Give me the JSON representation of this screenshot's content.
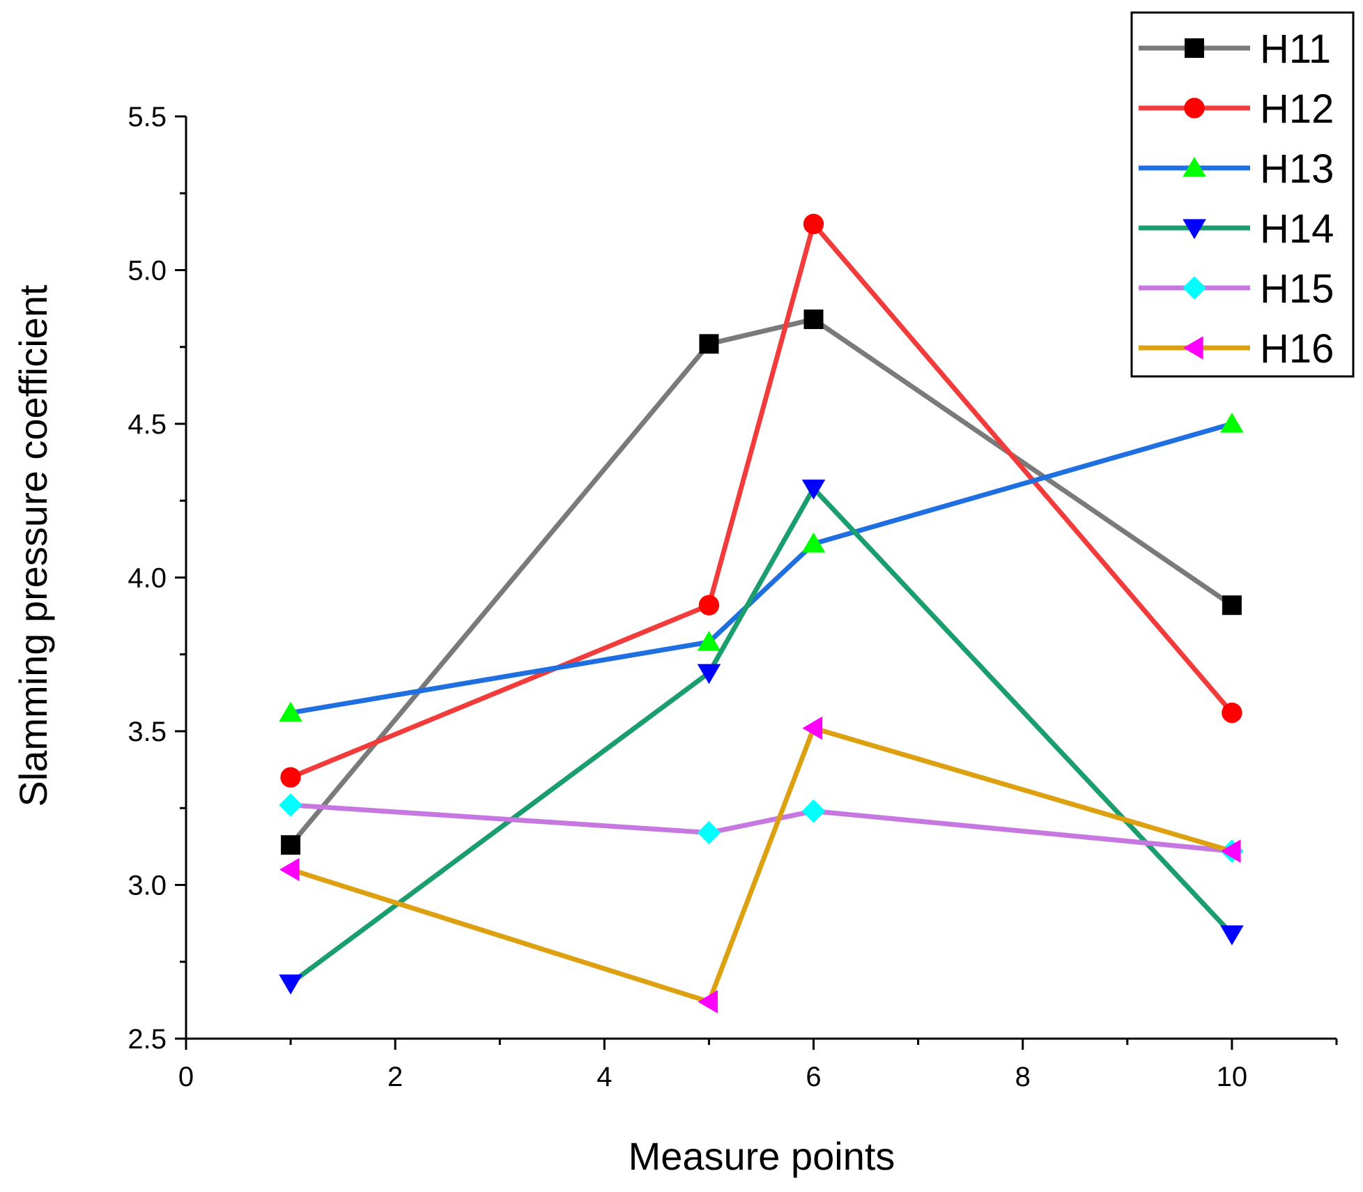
{
  "chart_data": {
    "type": "line",
    "xlabel": "Measure points",
    "ylabel": "Slamming pressure coefficient",
    "xlim": [
      0,
      11
    ],
    "ylim": [
      2.5,
      5.5
    ],
    "x_ticks": [
      0,
      2,
      4,
      6,
      8,
      10
    ],
    "x_tick_labels": [
      "0",
      "2",
      "4",
      "6",
      "8",
      "10"
    ],
    "y_ticks": [
      2.5,
      3.0,
      3.5,
      4.0,
      4.5,
      5.0,
      5.5
    ],
    "y_tick_labels": [
      "2.5",
      "3.0",
      "3.5",
      "4.0",
      "4.5",
      "5.0",
      "5.5"
    ],
    "grid": false,
    "legend_position": "top-right",
    "series": [
      {
        "name": "H11",
        "color": "#7a7a7a",
        "marker": "square",
        "marker_color": "#000000",
        "x": [
          1,
          5,
          6,
          10
        ],
        "values": [
          3.13,
          4.76,
          4.84,
          3.91
        ]
      },
      {
        "name": "H12",
        "color": "#f23c3c",
        "marker": "circle",
        "marker_color": "#ff0000",
        "x": [
          1,
          5,
          6,
          10
        ],
        "values": [
          3.35,
          3.91,
          5.15,
          3.56
        ]
      },
      {
        "name": "H13",
        "color": "#1f6fe0",
        "marker": "triangle-up",
        "marker_color": "#00ff00",
        "x": [
          1,
          5,
          6,
          10
        ],
        "values": [
          3.56,
          3.79,
          4.11,
          4.5
        ]
      },
      {
        "name": "H14",
        "color": "#1a9e6e",
        "marker": "triangle-down",
        "marker_color": "#0000ff",
        "x": [
          1,
          5,
          6,
          10
        ],
        "values": [
          2.68,
          3.69,
          4.29,
          2.84
        ]
      },
      {
        "name": "H15",
        "color": "#c678e0",
        "marker": "diamond",
        "marker_color": "#00ffff",
        "x": [
          1,
          5,
          6,
          10
        ],
        "values": [
          3.26,
          3.17,
          3.24,
          3.11
        ]
      },
      {
        "name": "H16",
        "color": "#dca010",
        "marker": "triangle-left",
        "marker_color": "#ff00ff",
        "x": [
          1,
          5,
          6,
          10
        ],
        "values": [
          3.05,
          2.62,
          3.51,
          3.11
        ]
      }
    ]
  }
}
